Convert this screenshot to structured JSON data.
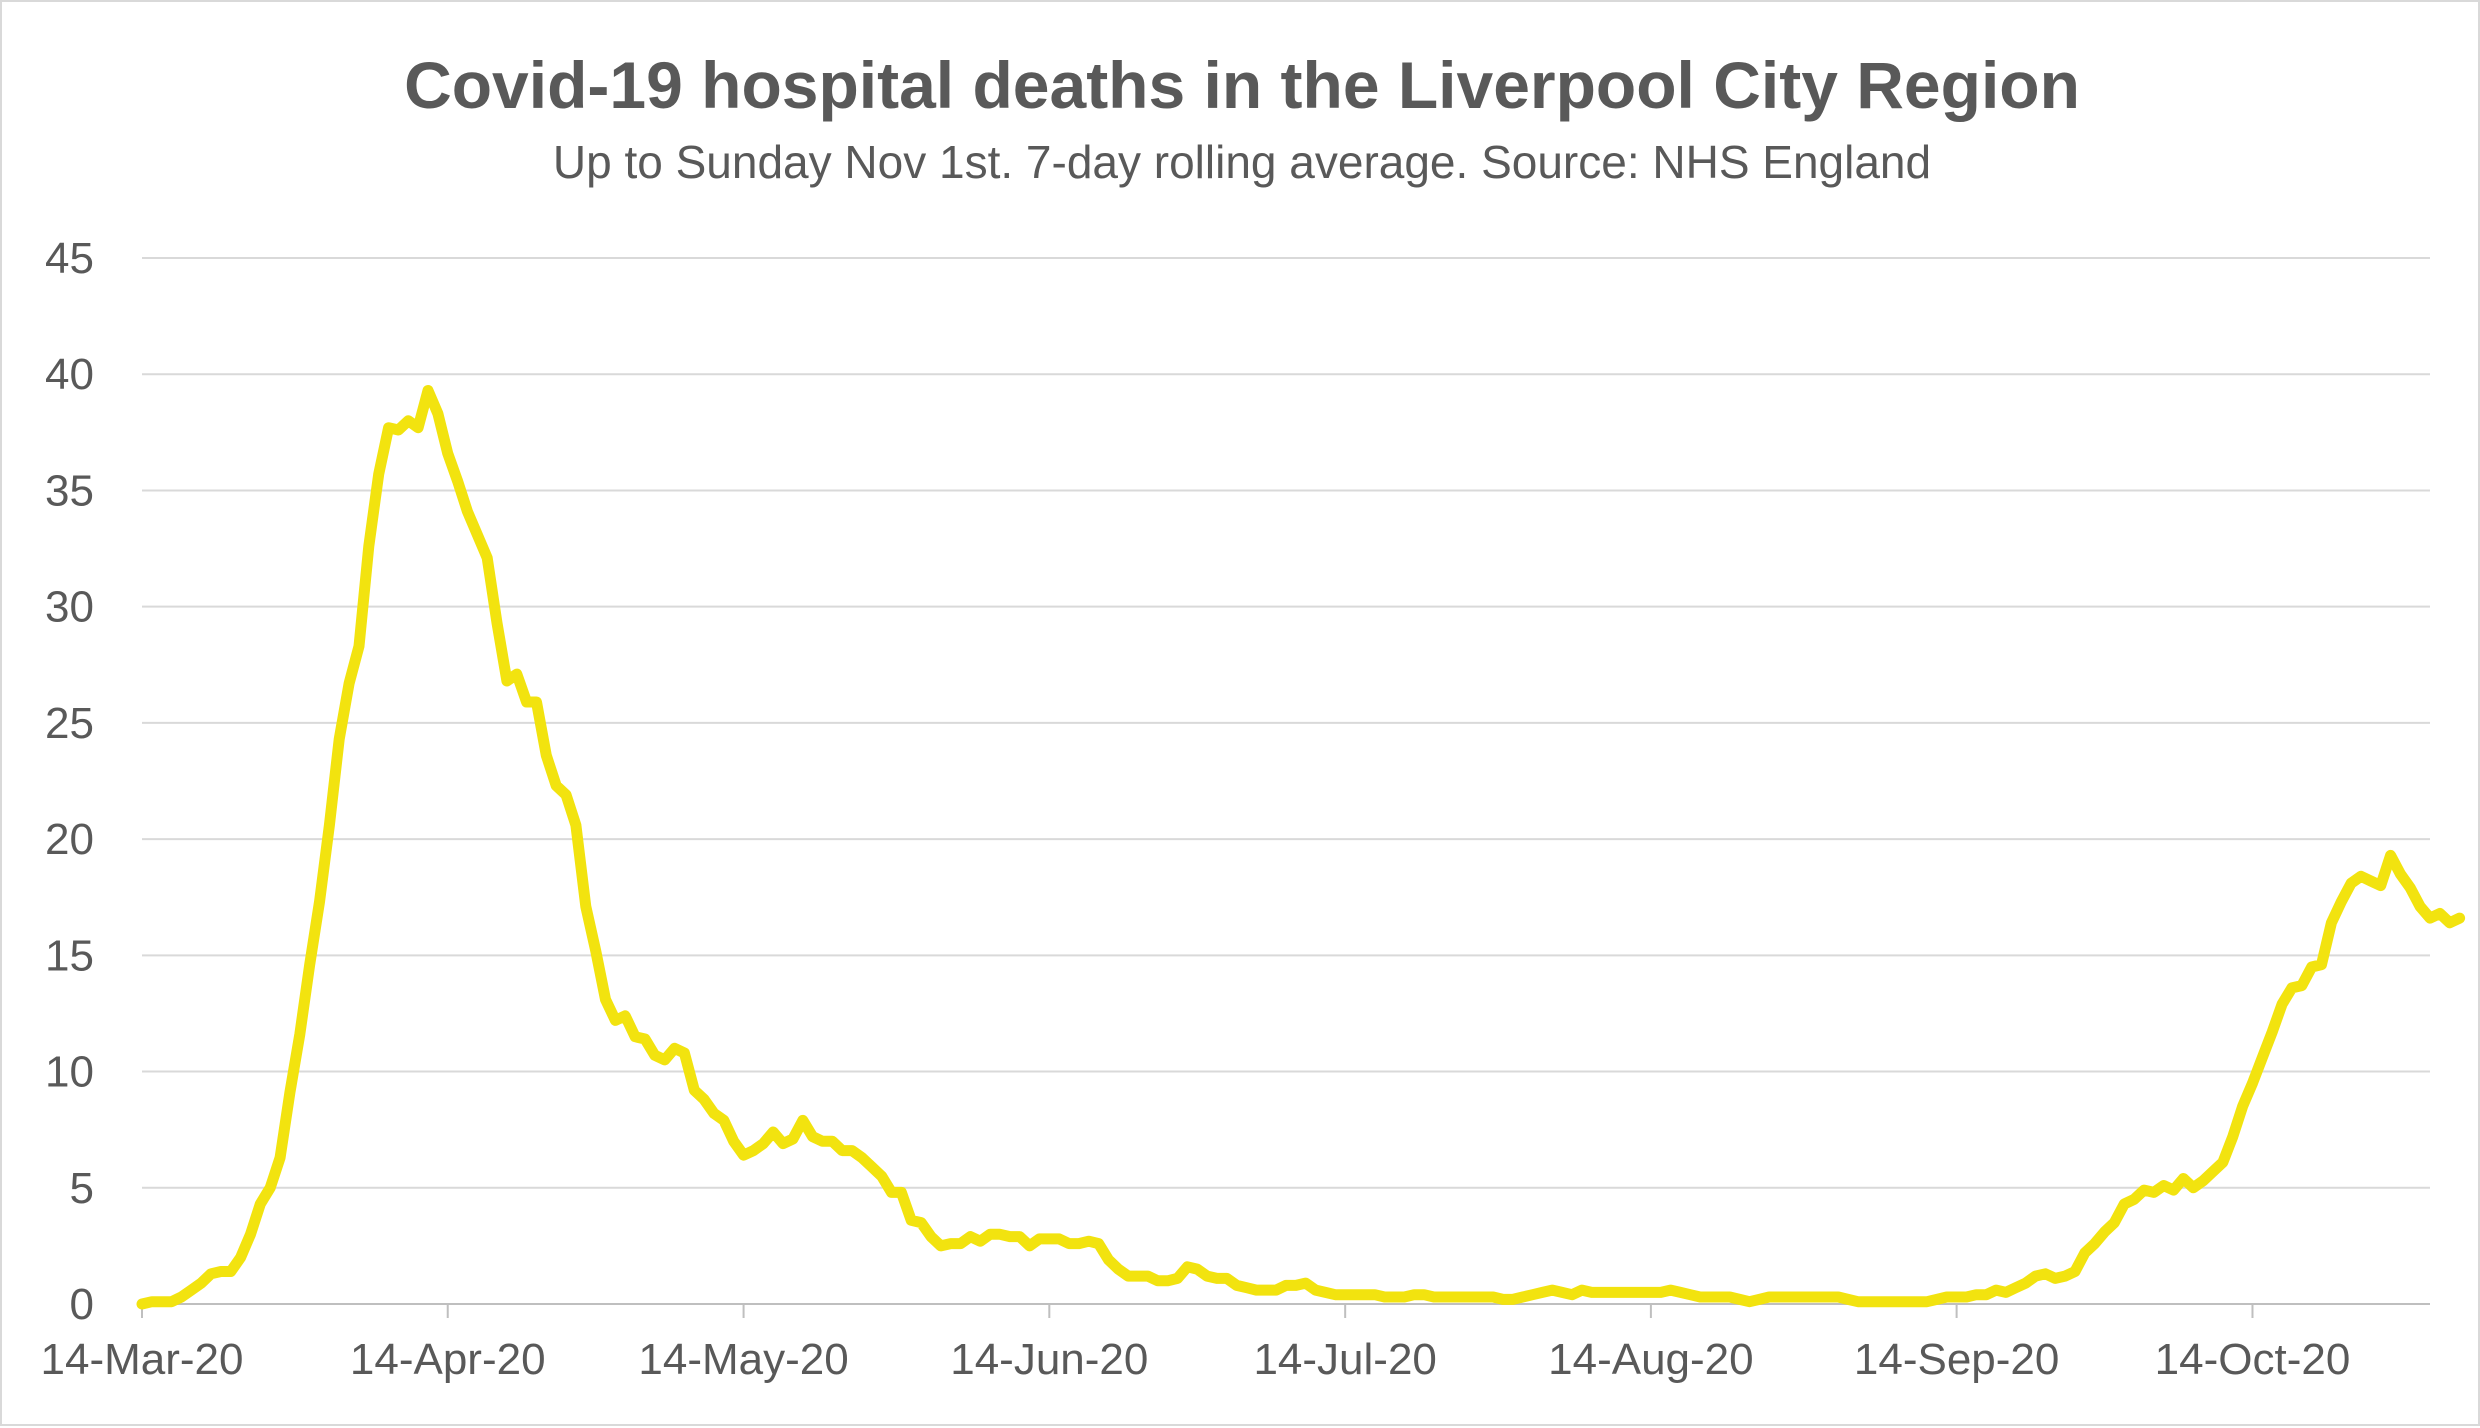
{
  "chart_data": {
    "type": "line",
    "title": "Covid-19 hospital deaths in the Liverpool City Region",
    "subtitle": "Up to Sunday Nov 1st. 7-day rolling average. Source: NHS England",
    "xlabel": "",
    "ylabel": "",
    "ylim": [
      0,
      45
    ],
    "y_ticks": [
      "0",
      "5",
      "10",
      "15",
      "20",
      "25",
      "30",
      "35",
      "40",
      "45"
    ],
    "x_start_day": 0,
    "x_end_day": 232,
    "x_ticks": [
      {
        "label": "14-Mar-20",
        "day": 0
      },
      {
        "label": "14-Apr-20",
        "day": 31
      },
      {
        "label": "14-May-20",
        "day": 61
      },
      {
        "label": "14-Jun-20",
        "day": 92
      },
      {
        "label": "14-Jul-20",
        "day": 122
      },
      {
        "label": "14-Aug-20",
        "day": 153
      },
      {
        "label": "14-Sep-20",
        "day": 184
      },
      {
        "label": "14-Oct-20",
        "day": 214
      }
    ],
    "grid": true,
    "line_color": "#f2e30f",
    "series": [
      {
        "name": "7-day rolling average",
        "values": [
          0,
          0.1,
          0.1,
          0.1,
          0.3,
          0.6,
          0.9,
          1.3,
          1.4,
          1.4,
          2.0,
          3.0,
          4.3,
          5.0,
          6.3,
          9.1,
          11.6,
          14.6,
          17.3,
          20.6,
          24.3,
          26.7,
          28.3,
          32.6,
          35.7,
          37.7,
          37.6,
          38.0,
          37.7,
          39.3,
          38.3,
          36.6,
          35.4,
          34.1,
          33.1,
          32.1,
          29.3,
          26.8,
          27.1,
          25.9,
          25.9,
          23.6,
          22.3,
          21.9,
          20.6,
          17.1,
          15.2,
          13.1,
          12.2,
          12.4,
          11.5,
          11.4,
          10.7,
          10.5,
          11.0,
          10.8,
          9.2,
          8.8,
          8.2,
          7.9,
          7.0,
          6.4,
          6.6,
          6.9,
          7.4,
          6.9,
          7.1,
          7.9,
          7.2,
          7.0,
          7.0,
          6.6,
          6.6,
          6.3,
          5.9,
          5.5,
          4.8,
          4.8,
          3.6,
          3.5,
          2.9,
          2.5,
          2.6,
          2.6,
          2.9,
          2.7,
          3.0,
          3.0,
          2.9,
          2.9,
          2.5,
          2.8,
          2.8,
          2.8,
          2.6,
          2.6,
          2.7,
          2.6,
          1.9,
          1.5,
          1.2,
          1.2,
          1.2,
          1.0,
          1.0,
          1.1,
          1.6,
          1.5,
          1.2,
          1.1,
          1.1,
          0.8,
          0.7,
          0.6,
          0.6,
          0.6,
          0.8,
          0.8,
          0.9,
          0.6,
          0.5,
          0.4,
          0.4,
          0.4,
          0.4,
          0.4,
          0.3,
          0.3,
          0.3,
          0.4,
          0.4,
          0.3,
          0.3,
          0.3,
          0.3,
          0.3,
          0.3,
          0.3,
          0.2,
          0.2,
          0.3,
          0.4,
          0.5,
          0.6,
          0.5,
          0.4,
          0.6,
          0.5,
          0.5,
          0.5,
          0.5,
          0.5,
          0.5,
          0.5,
          0.5,
          0.6,
          0.5,
          0.4,
          0.3,
          0.3,
          0.3,
          0.3,
          0.2,
          0.1,
          0.2,
          0.3,
          0.3,
          0.3,
          0.3,
          0.3,
          0.3,
          0.3,
          0.3,
          0.2,
          0.1,
          0.1,
          0.1,
          0.1,
          0.1,
          0.1,
          0.1,
          0.1,
          0.2,
          0.3,
          0.3,
          0.3,
          0.4,
          0.4,
          0.6,
          0.5,
          0.7,
          0.9,
          1.2,
          1.3,
          1.1,
          1.2,
          1.4,
          2.2,
          2.6,
          3.1,
          3.5,
          4.3,
          4.5,
          4.9,
          4.8,
          5.1,
          4.9,
          5.4,
          5.0,
          5.3,
          5.7,
          6.1,
          7.2,
          8.5,
          9.5,
          10.6,
          11.7,
          12.9,
          13.6,
          13.7,
          14.5,
          14.6,
          16.4,
          17.3,
          18.1,
          18.4,
          18.2,
          18.0,
          19.3,
          18.5,
          17.9,
          17.1,
          16.6,
          16.8,
          16.4,
          16.6
        ]
      }
    ]
  }
}
